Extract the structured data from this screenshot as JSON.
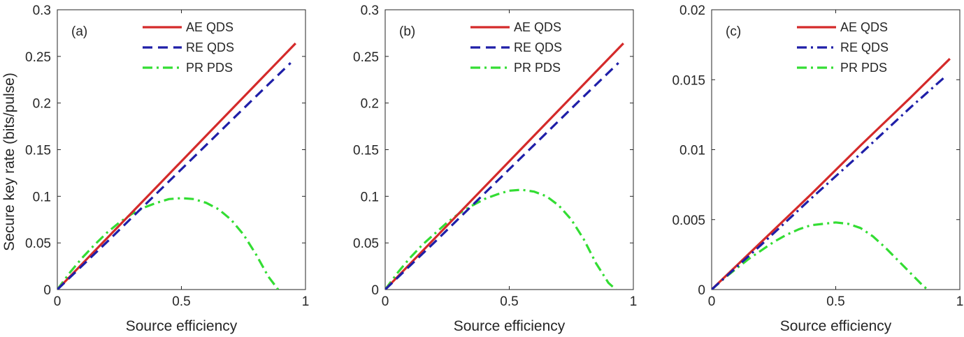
{
  "figure": {
    "ylabel": "Secure key rate (bits/pulse)"
  },
  "chart_data": [
    {
      "type": "line",
      "panel_label": "(a)",
      "xlabel": "Source efficiency",
      "ylabel": "Secure key rate (bits/pulse)",
      "xlim": [
        0,
        1
      ],
      "ylim": [
        0,
        0.3
      ],
      "xticks": [
        0,
        0.5,
        1
      ],
      "xtick_labels": [
        "0",
        "0.5",
        "1"
      ],
      "yticks": [
        0,
        0.05,
        0.1,
        0.15,
        0.2,
        0.25,
        0.3
      ],
      "ytick_labels": [
        "0",
        "0.05",
        "0.1",
        "0.15",
        "0.2",
        "0.25",
        "0.3"
      ],
      "legend_position": "top-right",
      "series": [
        {
          "name": "AE QDS",
          "color": "#d42a2a",
          "style": "solid",
          "x": [
            0,
            0.2,
            0.4,
            0.6,
            0.8,
            0.96
          ],
          "y": [
            0,
            0.055,
            0.11,
            0.165,
            0.22,
            0.264
          ]
        },
        {
          "name": "RE QDS",
          "color": "#1f1fa8",
          "style": "dash",
          "x": [
            0,
            0.2,
            0.4,
            0.6,
            0.8,
            0.94
          ],
          "y": [
            0,
            0.051,
            0.103,
            0.155,
            0.207,
            0.243
          ]
        },
        {
          "name": "PR PDS",
          "color": "#33dd33",
          "style": "dashdot",
          "x": [
            0,
            0.05,
            0.1,
            0.15,
            0.2,
            0.25,
            0.3,
            0.35,
            0.4,
            0.45,
            0.5,
            0.55,
            0.6,
            0.65,
            0.7,
            0.75,
            0.8,
            0.85,
            0.89
          ],
          "y": [
            0,
            0.018,
            0.034,
            0.048,
            0.061,
            0.072,
            0.081,
            0.088,
            0.093,
            0.097,
            0.098,
            0.097,
            0.093,
            0.086,
            0.075,
            0.059,
            0.038,
            0.014,
            0
          ]
        }
      ]
    },
    {
      "type": "line",
      "panel_label": "(b)",
      "xlabel": "Source efficiency",
      "ylabel": "",
      "xlim": [
        0,
        1
      ],
      "ylim": [
        0,
        0.3
      ],
      "xticks": [
        0,
        0.5,
        1
      ],
      "xtick_labels": [
        "0",
        "0.5",
        "1"
      ],
      "yticks": [
        0,
        0.05,
        0.1,
        0.15,
        0.2,
        0.25,
        0.3
      ],
      "ytick_labels": [
        "0",
        "0.05",
        "0.1",
        "0.15",
        "0.2",
        "0.25",
        "0.3"
      ],
      "legend_position": "top-right",
      "series": [
        {
          "name": "AE QDS",
          "color": "#d42a2a",
          "style": "solid",
          "x": [
            0,
            0.2,
            0.4,
            0.6,
            0.8,
            0.96
          ],
          "y": [
            0,
            0.055,
            0.11,
            0.165,
            0.22,
            0.264
          ]
        },
        {
          "name": "RE QDS",
          "color": "#1f1fa8",
          "style": "dash",
          "x": [
            0,
            0.2,
            0.4,
            0.6,
            0.8,
            0.94
          ],
          "y": [
            0,
            0.051,
            0.103,
            0.155,
            0.207,
            0.243
          ]
        },
        {
          "name": "PR PDS",
          "color": "#33dd33",
          "style": "dashdot",
          "x": [
            0,
            0.05,
            0.1,
            0.15,
            0.2,
            0.25,
            0.3,
            0.35,
            0.4,
            0.45,
            0.5,
            0.55,
            0.6,
            0.65,
            0.7,
            0.75,
            0.8,
            0.85,
            0.9,
            0.93
          ],
          "y": [
            0,
            0.018,
            0.034,
            0.048,
            0.06,
            0.072,
            0.082,
            0.09,
            0.097,
            0.102,
            0.106,
            0.107,
            0.105,
            0.1,
            0.09,
            0.075,
            0.054,
            0.028,
            0.007,
            0
          ]
        }
      ]
    },
    {
      "type": "line",
      "panel_label": "(c)",
      "xlabel": "Source efficiency",
      "ylabel": "",
      "xlim": [
        0,
        1
      ],
      "ylim": [
        0,
        0.02
      ],
      "xticks": [
        0,
        0.5,
        1
      ],
      "xtick_labels": [
        "0",
        "0.5",
        "1"
      ],
      "yticks": [
        0,
        0.005,
        0.01,
        0.015,
        0.02
      ],
      "ytick_labels": [
        "0",
        "0.005",
        "0.01",
        "0.015",
        "0.02"
      ],
      "legend_position": "top-right",
      "series": [
        {
          "name": "AE QDS",
          "color": "#d42a2a",
          "style": "solid",
          "x": [
            0,
            0.2,
            0.4,
            0.6,
            0.8,
            0.96
          ],
          "y": [
            0,
            0.0034,
            0.0068,
            0.0103,
            0.0137,
            0.0165
          ]
        },
        {
          "name": "RE QDS",
          "color": "#1f1fa8",
          "style": "dashdot",
          "x": [
            0,
            0.2,
            0.4,
            0.6,
            0.8,
            0.94
          ],
          "y": [
            0,
            0.0032,
            0.0065,
            0.0097,
            0.013,
            0.0152
          ]
        },
        {
          "name": "PR PDS",
          "color": "#33dd33",
          "style": "dashdot",
          "x": [
            0,
            0.05,
            0.1,
            0.15,
            0.2,
            0.25,
            0.3,
            0.35,
            0.4,
            0.45,
            0.5,
            0.55,
            0.6,
            0.65,
            0.7,
            0.75,
            0.8,
            0.85,
            0.87
          ],
          "y": [
            0,
            0.0008,
            0.0015,
            0.0022,
            0.0028,
            0.0034,
            0.0039,
            0.0043,
            0.0046,
            0.0047,
            0.0048,
            0.0047,
            0.0044,
            0.0038,
            0.003,
            0.0021,
            0.0012,
            0.0003,
            0
          ]
        }
      ]
    }
  ]
}
